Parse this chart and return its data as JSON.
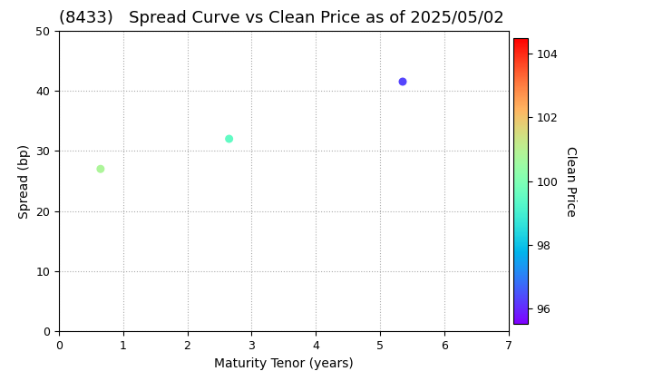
{
  "title": "(8433)   Spread Curve vs Clean Price as of 2025/05/02",
  "xlabel": "Maturity Tenor (years)",
  "ylabel": "Spread (bp)",
  "colorbar_label": "Clean Price",
  "points": [
    {
      "tenor": 0.65,
      "spread": 27.0,
      "clean_price": 100.8
    },
    {
      "tenor": 2.65,
      "spread": 32.0,
      "clean_price": 99.5
    },
    {
      "tenor": 5.35,
      "spread": 41.5,
      "clean_price": 96.3
    }
  ],
  "xlim": [
    0,
    7
  ],
  "ylim": [
    0,
    50
  ],
  "xticks": [
    0,
    1,
    2,
    3,
    4,
    5,
    6,
    7
  ],
  "yticks": [
    0,
    10,
    20,
    30,
    40,
    50
  ],
  "cmap": "rainbow",
  "clim": [
    95.5,
    104.5
  ],
  "colorbar_ticks": [
    96,
    98,
    100,
    102,
    104
  ],
  "marker_size": 30,
  "grid_color": "#aaaaaa",
  "grid_style": "dotted",
  "bg_color": "#ffffff",
  "title_fontsize": 13,
  "label_fontsize": 10,
  "tick_fontsize": 9
}
